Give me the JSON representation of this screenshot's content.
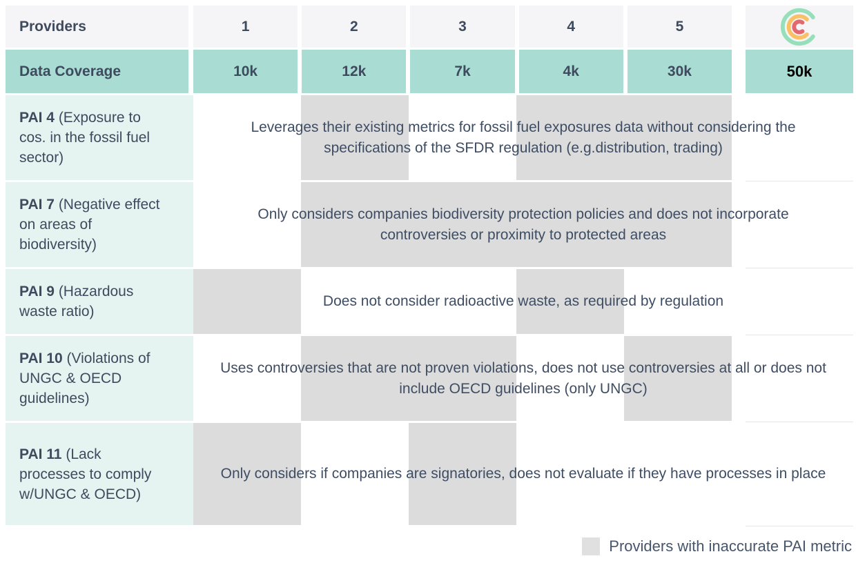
{
  "header": {
    "label": "Providers",
    "providers": [
      "1",
      "2",
      "3",
      "4",
      "5"
    ],
    "logo_icon": "concentric-c-logo",
    "logo_colors": {
      "outer": "#95dfba",
      "middle": "#f9c167",
      "inner": "#e4696e"
    }
  },
  "coverage": {
    "label": "Data Coverage",
    "values": [
      "10k",
      "12k",
      "7k",
      "4k",
      "30k"
    ],
    "highlight_value": "50k"
  },
  "rows": [
    {
      "pai": "PAI 4",
      "description": "(Exposure to cos. in the fossil fuel sector)",
      "message": "Leverages their existing metrics for fossil fuel exposures data without considering the specifications of the SFDR regulation (e.g.distribution, trading)",
      "inaccurate_providers": [
        2,
        4,
        5
      ]
    },
    {
      "pai": "PAI 7",
      "description": "(Negative effect on areas of biodiversity)",
      "message": "Only considers companies biodiversity protection policies and does not incorporate controversies or proximity to protected areas",
      "inaccurate_providers": [
        2,
        3,
        4,
        5
      ]
    },
    {
      "pai": "PAI 9",
      "description": "(Hazardous waste ratio)",
      "message": "Does not consider radioactive waste, as required by regulation",
      "inaccurate_providers": [
        1,
        4
      ]
    },
    {
      "pai": "PAI 10",
      "description": "(Violations of UNGC & OECD guidelines)",
      "message": "Uses controversies that are not proven violations, does not use controversies at all or does not include OECD guidelines (only UNGC)",
      "inaccurate_providers": [
        2,
        3,
        5
      ]
    },
    {
      "pai": "PAI 11",
      "description": "(Lack processes to comply w/UNGC & OECD)",
      "message": "Only considers if companies are signatories, does not evaluate if they have processes in place",
      "inaccurate_providers": [
        1,
        3
      ]
    }
  ],
  "legend": {
    "label": "Providers with inaccurate PAI metric",
    "swatch_color": "#e0e0e0"
  },
  "colors": {
    "teal": "#a9dcd2",
    "mint": "#e6f4f1",
    "header_bg": "#f5f4f6",
    "inaccurate_cell": "#dcdcdc",
    "text": "#3e4a5e",
    "highlight_text": "#000000"
  }
}
